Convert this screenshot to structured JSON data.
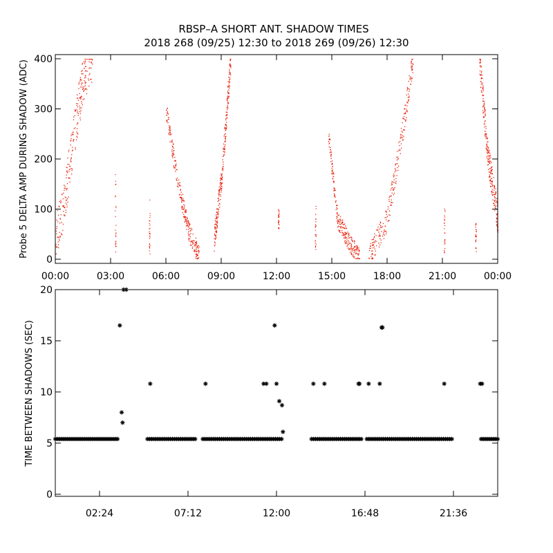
{
  "header": {
    "title_line1": "RBSP–A SHORT ANT. SHADOW TIMES",
    "title_line2": "2018 268 (09/25) 12:30 to 2018 269 (09/26) 12:30"
  },
  "chart_data": [
    {
      "type": "scatter",
      "name": "top-panel",
      "ylabel": "Probe 5 DELTA AMP DURING SHADOW (ADC)",
      "xlabel": "",
      "x_unit": "hours",
      "xlim": [
        0,
        24
      ],
      "ylim": [
        0,
        400
      ],
      "x_tick_labels": [
        "00:00",
        "03:00",
        "06:00",
        "09:00",
        "12:00",
        "15:00",
        "18:00",
        "21:00",
        "00:00"
      ],
      "x_tick_values": [
        0,
        3,
        6,
        9,
        12,
        15,
        18,
        21,
        24
      ],
      "y_ticks": [
        0,
        100,
        200,
        300,
        400
      ],
      "marker_color": "#e8200c",
      "series": [
        {
          "segments": [
            {
              "x": [
                0.0,
                0.5,
                1.0,
                1.5,
                2.0
              ],
              "y": [
                40,
                120,
                250,
                360,
                400
              ],
              "spread": 45
            },
            {
              "x": [
                6.0,
                6.6,
                7.2,
                7.8
              ],
              "y": [
                300,
                160,
                60,
                5
              ],
              "spread": 20
            },
            {
              "x": [
                8.6,
                9.0,
                9.5
              ],
              "y": [
                40,
                160,
                400
              ],
              "spread": 25
            },
            {
              "x": [
                14.8,
                15.3,
                16.0,
                16.5
              ],
              "y": [
                250,
                80,
                30,
                5
              ],
              "spread": 18
            },
            {
              "x": [
                17.0,
                18.0,
                18.8,
                19.4
              ],
              "y": [
                5,
                80,
                250,
                400
              ],
              "spread": 25
            },
            {
              "x": [
                23.0,
                23.4,
                24.0
              ],
              "y": [
                400,
                220,
                80
              ],
              "spread": 30
            }
          ],
          "spikes": [
            {
              "x": 3.25,
              "y0": 5,
              "y1": 175
            },
            {
              "x": 5.1,
              "y0": 5,
              "y1": 125
            },
            {
              "x": 12.1,
              "y0": 60,
              "y1": 100
            },
            {
              "x": 14.1,
              "y0": 20,
              "y1": 110
            },
            {
              "x": 21.1,
              "y0": 5,
              "y1": 105
            },
            {
              "x": 22.8,
              "y0": 10,
              "y1": 75
            }
          ]
        }
      ]
    },
    {
      "type": "scatter",
      "name": "bottom-panel",
      "ylabel": "TIME BETWEEN SHADOWS (SEC)",
      "xlabel": "",
      "x_unit": "hours",
      "xlim": [
        0,
        24
      ],
      "ylim": [
        0,
        20
      ],
      "x_tick_labels": [
        "02:24",
        "07:12",
        "12:00",
        "16:48",
        "21:36"
      ],
      "x_tick_values": [
        2.4,
        7.2,
        12.0,
        16.8,
        21.6
      ],
      "y_ticks": [
        0,
        5,
        10,
        15,
        20
      ],
      "marker": "*",
      "marker_color": "#000000",
      "baseline": {
        "value": 5.4,
        "ranges": [
          [
            0.0,
            3.4
          ],
          [
            5.0,
            7.6
          ],
          [
            8.0,
            12.3
          ],
          [
            13.9,
            16.6
          ],
          [
            16.9,
            21.6
          ],
          [
            23.1,
            24.0
          ]
        ]
      },
      "points": [
        {
          "x": 3.5,
          "y": 16.5
        },
        {
          "x": 3.6,
          "y": 8.0
        },
        {
          "x": 3.65,
          "y": 7.0
        },
        {
          "x": 3.7,
          "y": 20.0
        },
        {
          "x": 3.85,
          "y": 20.0
        },
        {
          "x": 5.15,
          "y": 10.8
        },
        {
          "x": 8.15,
          "y": 10.8
        },
        {
          "x": 11.3,
          "y": 10.8
        },
        {
          "x": 11.45,
          "y": 10.8
        },
        {
          "x": 11.9,
          "y": 16.5
        },
        {
          "x": 12.0,
          "y": 10.8
        },
        {
          "x": 12.15,
          "y": 9.1
        },
        {
          "x": 12.3,
          "y": 8.7
        },
        {
          "x": 12.35,
          "y": 6.1
        },
        {
          "x": 14.0,
          "y": 10.8
        },
        {
          "x": 14.6,
          "y": 10.8
        },
        {
          "x": 16.45,
          "y": 10.8
        },
        {
          "x": 16.5,
          "y": 10.8
        },
        {
          "x": 17.0,
          "y": 10.8
        },
        {
          "x": 17.6,
          "y": 10.8
        },
        {
          "x": 17.7,
          "y": 16.3
        },
        {
          "x": 17.75,
          "y": 16.3
        },
        {
          "x": 21.1,
          "y": 10.8
        },
        {
          "x": 23.05,
          "y": 10.8
        },
        {
          "x": 23.15,
          "y": 10.8
        }
      ]
    }
  ]
}
